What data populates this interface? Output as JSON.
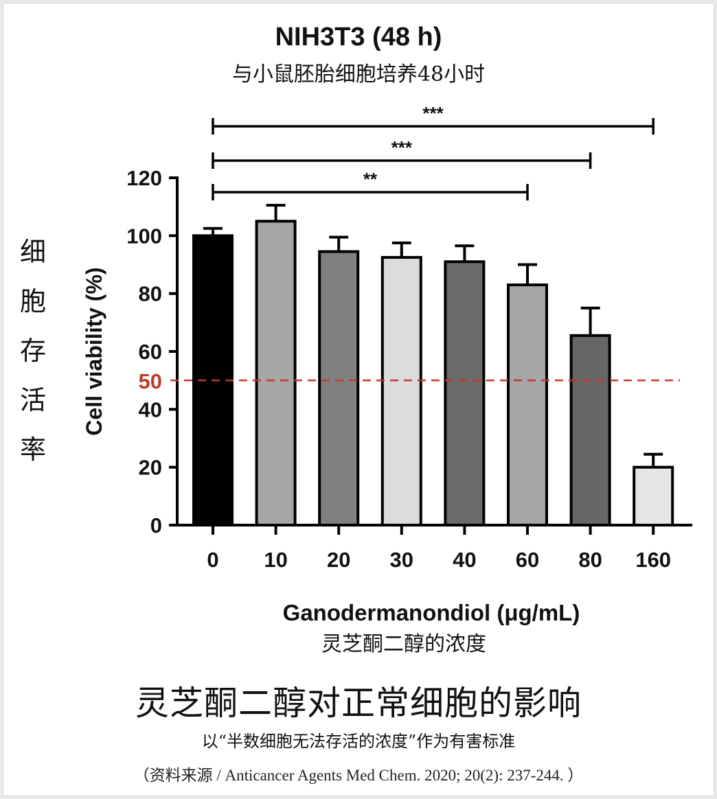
{
  "chart_data": {
    "type": "bar",
    "title": "NIH3T3 (48 h)",
    "subtitle": "与小鼠胚胎细胞培养48小时",
    "categories": [
      "0",
      "10",
      "20",
      "30",
      "40",
      "60",
      "80",
      "160"
    ],
    "values": [
      100,
      105,
      94.5,
      92.5,
      91,
      83,
      65.5,
      20
    ],
    "error_upper": [
      2.5,
      5.5,
      5,
      5,
      5.5,
      7,
      9.5,
      4.5
    ],
    "bar_colors": [
      "#000000",
      "#a6a6a6",
      "#808080",
      "#dcdcdc",
      "#6b6b6b",
      "#a6a6a6",
      "#666666",
      "#e6e6e6"
    ],
    "xlabel": "Ganodermanondiol (μg/mL)",
    "xlabel_cn": "灵芝酮二醇的浓度",
    "ylabel": "Cell viability (%)",
    "ylabel_cn": "细胞存活率",
    "ylim": [
      0,
      120
    ],
    "yticks": [
      0,
      20,
      40,
      60,
      80,
      100,
      120
    ],
    "reference_line": {
      "value": 50,
      "label": "50",
      "color": "#c0392b",
      "style": "dashed"
    },
    "significance": [
      {
        "from": "0",
        "to": "60",
        "label": "**"
      },
      {
        "from": "0",
        "to": "80",
        "label": "***"
      },
      {
        "from": "0",
        "to": "160",
        "label": "***"
      }
    ],
    "grid": false,
    "legend": "none"
  },
  "captions": {
    "main": "灵芝酮二醇对正常细胞的影响",
    "sub": "以“半数细胞无法存活的浓度”作为有害标准",
    "source": "（资料来源 / Anticancer Agents Med Chem. 2020; 20(2): 237-244. ）"
  }
}
